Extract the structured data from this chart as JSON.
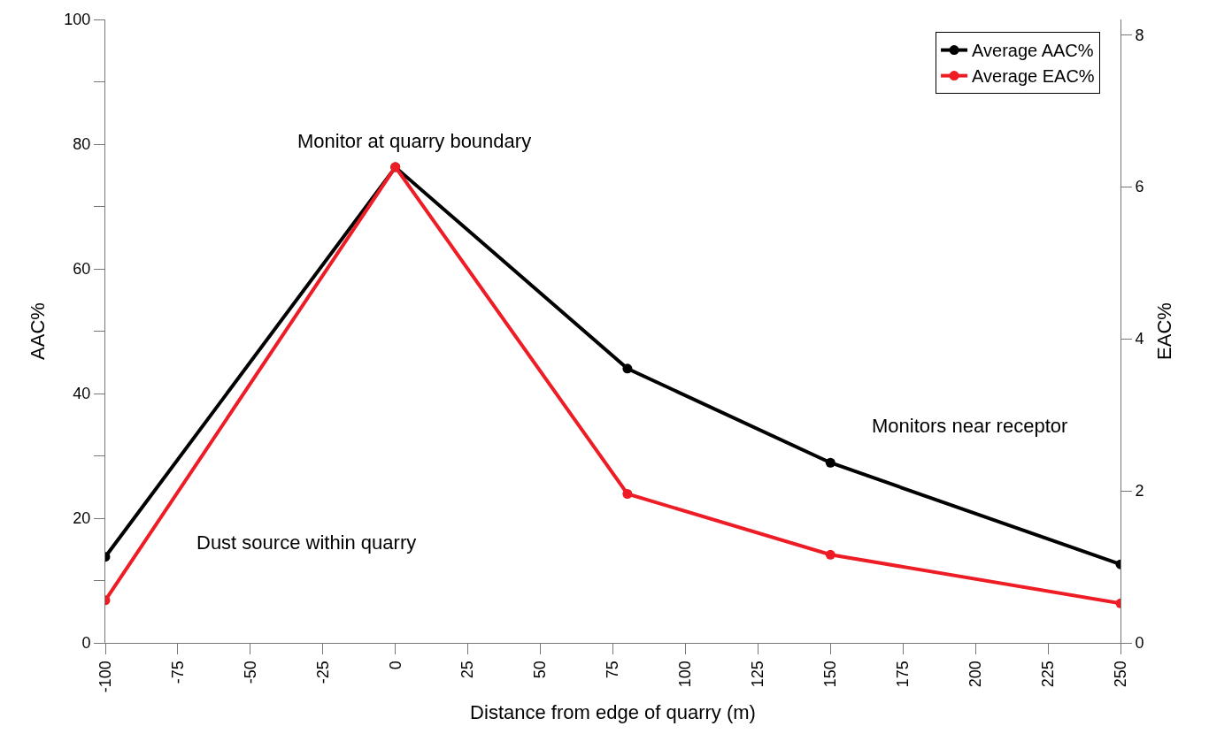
{
  "chart_data": {
    "type": "line",
    "xlabel": "Distance from edge of quarry (m)",
    "ylabel": "AAC%",
    "y2label": "EAC%",
    "x": [
      -100,
      0,
      80,
      150,
      250
    ],
    "series": [
      {
        "name": "Average AAC%",
        "color": "#000000",
        "values": [
          13.8,
          76.3,
          44,
          28.9,
          12.6
        ]
      },
      {
        "name": "Average EAC%",
        "color": "#ee1c25",
        "axis": "y2",
        "values": [
          0.56,
          6.26,
          1.96,
          1.16,
          0.52
        ]
      }
    ],
    "xlim": [
      -100,
      250
    ],
    "xticks": [
      -100,
      -75,
      -50,
      -25,
      0,
      25,
      50,
      75,
      100,
      125,
      150,
      175,
      200,
      225,
      250
    ],
    "ylim": [
      0,
      100
    ],
    "yticks": [
      0,
      {
        "value": 10,
        "label": null
      },
      20,
      {
        "value": 30,
        "label": null
      },
      40,
      {
        "value": 50,
        "label": null
      },
      60,
      {
        "value": 70,
        "label": null
      },
      80,
      {
        "value": 90,
        "label": null
      },
      100
    ],
    "y2lim": [
      0,
      8.2
    ],
    "y2ticks": [
      0,
      2,
      4,
      6,
      8
    ],
    "annotations": [
      "Dust source within quarry",
      "Monitor at quarry boundary",
      "Monitors near receptor"
    ],
    "marker": "circle",
    "line_style": "solid",
    "legend": "top right"
  }
}
